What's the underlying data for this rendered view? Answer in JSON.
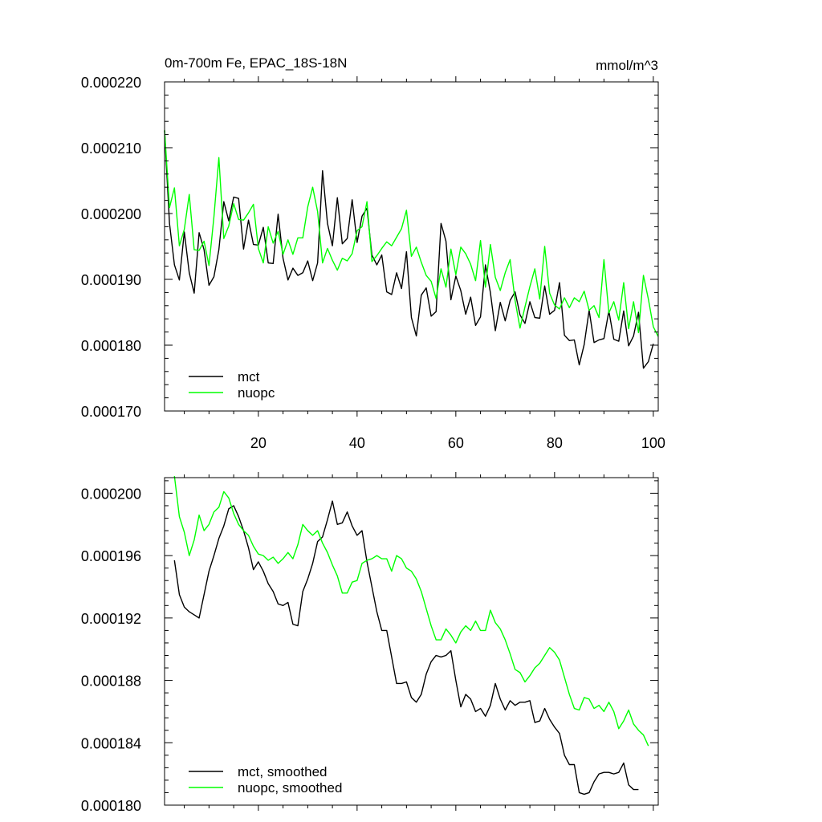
{
  "chart_data": [
    {
      "type": "line",
      "title": "0m-700m Fe, EPAC_18S-18N",
      "units": "mmol/m^3",
      "xlim": [
        1,
        101
      ],
      "ylim": [
        0.00017,
        0.00022
      ],
      "xticks": [
        20,
        40,
        60,
        80,
        100
      ],
      "yticks": [
        0.00017,
        0.00018,
        0.00019,
        0.0002,
        0.00021,
        0.00022
      ],
      "ytick_labels": [
        "0.000170",
        "0.000180",
        "0.000190",
        "0.000200",
        "0.000210",
        "0.000220"
      ],
      "legend_position": "bottom-left",
      "series": [
        {
          "name": "mct",
          "color": "#000000",
          "x_start": 1,
          "values": [
            0.0002126,
            0.0001985,
            0.0001922,
            0.0001899,
            0.0001972,
            0.000191,
            0.0001879,
            0.0001971,
            0.0001945,
            0.0001891,
            0.0001904,
            0.0001945,
            0.0002018,
            0.0001989,
            0.0002025,
            0.0002023,
            0.0001946,
            0.000199,
            0.0001953,
            0.0001952,
            0.0001979,
            0.0001925,
            0.0001924,
            0.0001999,
            0.0001932,
            0.0001899,
            0.0001917,
            0.0001906,
            0.000191,
            0.0001928,
            0.0001898,
            0.0001925,
            0.0002065,
            0.0001985,
            0.0001951,
            0.0002024,
            0.0001954,
            0.0001962,
            0.0002021,
            0.0001956,
            0.0001996,
            0.0002008,
            0.0001937,
            0.0001922,
            0.0001937,
            0.0001881,
            0.0001877,
            0.000191,
            0.0001886,
            0.0001942,
            0.0001842,
            0.0001814,
            0.0001876,
            0.0001887,
            0.0001844,
            0.0001851,
            0.0001985,
            0.0001958,
            0.0001869,
            0.0001905,
            0.0001883,
            0.0001847,
            0.0001873,
            0.000183,
            0.0001843,
            0.0001922,
            0.000188,
            0.0001822,
            0.0001865,
            0.0001837,
            0.0001868,
            0.0001881,
            0.0001846,
            0.0001833,
            0.0001866,
            0.0001842,
            0.0001841,
            0.000189,
            0.0001847,
            0.0001853,
            0.0001895,
            0.0001815,
            0.0001807,
            0.0001808,
            0.000177,
            0.0001801,
            0.0001853,
            0.0001804,
            0.0001808,
            0.000181,
            0.0001852,
            0.0001809,
            0.0001806,
            0.0001852,
            0.0001799,
            0.0001814,
            0.000185,
            0.0001765,
            0.0001775,
            0.0001802
          ]
        },
        {
          "name": "nuopc",
          "color": "#00ff00",
          "x_start": 1,
          "values": [
            0.0002127,
            0.0002009,
            0.0002039,
            0.0001951,
            0.0001976,
            0.0002029,
            0.0001945,
            0.0001944,
            0.0001958,
            0.0001921,
            0.0001995,
            0.0002085,
            0.0001962,
            0.0001981,
            0.0002015,
            0.0001991,
            0.000199,
            0.0002001,
            0.0002014,
            0.0001947,
            0.0001925,
            0.000198,
            0.0001955,
            0.0001973,
            0.0001938,
            0.000196,
            0.0001938,
            0.0001963,
            0.0001963,
            0.000201,
            0.000204,
            0.0002003,
            0.0001925,
            0.0001947,
            0.0001929,
            0.0001914,
            0.0001932,
            0.0001928,
            0.0001939,
            0.0001974,
            0.000198,
            0.0002018,
            0.0001927,
            0.0001936,
            0.0001947,
            0.0001957,
            0.0001951,
            0.0001964,
            0.0001977,
            0.0002005,
            0.0001935,
            0.0001949,
            0.0001926,
            0.0001906,
            0.0001897,
            0.0001871,
            0.0001916,
            0.0001888,
            0.0001946,
            0.0001907,
            0.0001949,
            0.0001939,
            0.0001923,
            0.0001898,
            0.0001959,
            0.0001888,
            0.0001953,
            0.0001903,
            0.0001883,
            0.000191,
            0.000193,
            0.0001868,
            0.0001826,
            0.0001858,
            0.0001889,
            0.0001916,
            0.000187,
            0.000195,
            0.0001879,
            0.0001861,
            0.0001855,
            0.0001872,
            0.0001857,
            0.0001872,
            0.0001866,
            0.0001882,
            0.0001853,
            0.000186,
            0.0001842,
            0.000193,
            0.0001849,
            0.0001866,
            0.0001838,
            0.0001895,
            0.0001825,
            0.0001866,
            0.0001819,
            0.0001906,
            0.000187,
            0.0001828,
            0.0001813
          ]
        }
      ]
    },
    {
      "type": "line",
      "xlim": [
        1,
        101
      ],
      "ylim": [
        0.00018,
        0.000201
      ],
      "xticks": [
        20,
        40,
        60,
        80,
        100
      ],
      "yticks": [
        0.00018,
        0.000184,
        0.000188,
        0.000192,
        0.000196,
        0.0002
      ],
      "ytick_labels": [
        "0.000180",
        "0.000184",
        "0.000188",
        "0.000192",
        "0.000196",
        "0.000200"
      ],
      "legend_position": "bottom-left",
      "series": [
        {
          "name": "mct, smoothed",
          "color": "#000000",
          "x_start": 3,
          "values": [
            0.0001957,
            0.0001935,
            0.0001927,
            0.0001924,
            0.0001922,
            0.000192,
            0.0001935,
            0.000195,
            0.000196,
            0.0001971,
            0.0001979,
            0.000199,
            0.0001992,
            0.0001985,
            0.0001976,
            0.0001965,
            0.0001951,
            0.0001956,
            0.000195,
            0.0001942,
            0.0001937,
            0.0001929,
            0.0001928,
            0.000193,
            0.0001916,
            0.0001915,
            0.0001937,
            0.0001945,
            0.0001955,
            0.0001969,
            0.0001972,
            0.0001983,
            0.0001995,
            0.000198,
            0.0001981,
            0.0001988,
            0.0001979,
            0.0001973,
            0.0001976,
            0.0001956,
            0.000194,
            0.0001924,
            0.0001912,
            0.0001912,
            0.0001895,
            0.0001878,
            0.0001878,
            0.0001879,
            0.0001869,
            0.0001866,
            0.0001871,
            0.0001884,
            0.0001892,
            0.0001896,
            0.0001895,
            0.0001896,
            0.0001899,
            0.000188,
            0.0001863,
            0.0001871,
            0.0001868,
            0.000186,
            0.0001862,
            0.0001857,
            0.0001864,
            0.0001878,
            0.0001868,
            0.0001861,
            0.0001867,
            0.0001864,
            0.0001866,
            0.0001866,
            0.0001867,
            0.0001853,
            0.0001854,
            0.0001862,
            0.0001855,
            0.000185,
            0.0001846,
            0.0001832,
            0.0001826,
            0.0001826,
            0.0001808,
            0.0001807,
            0.0001808,
            0.0001815,
            0.000182,
            0.0001821,
            0.0001821,
            0.000182,
            0.0001821,
            0.0001827,
            0.0001813,
            0.000181,
            0.000181
          ]
        },
        {
          "name": "nuopc, smoothed",
          "color": "#00ff00",
          "x_start": 3,
          "values": [
            0.0002011,
            0.0001985,
            0.0001975,
            0.000196,
            0.000197,
            0.0001986,
            0.0001976,
            0.000198,
            0.0001988,
            0.0001991,
            0.0002001,
            0.0001997,
            0.0001987,
            0.000198,
            0.0001976,
            0.0001973,
            0.0001966,
            0.0001961,
            0.000196,
            0.0001957,
            0.0001959,
            0.0001955,
            0.0001958,
            0.0001962,
            0.0001958,
            0.0001967,
            0.000198,
            0.0001976,
            0.0001973,
            0.0001976,
            0.0001968,
            0.0001962,
            0.0001954,
            0.0001947,
            0.0001936,
            0.0001936,
            0.0001943,
            0.0001944,
            0.0001955,
            0.0001957,
            0.0001958,
            0.000196,
            0.0001958,
            0.0001958,
            0.000195,
            0.000196,
            0.0001958,
            0.0001952,
            0.000195,
            0.0001945,
            0.0001937,
            0.0001926,
            0.0001915,
            0.0001906,
            0.0001906,
            0.0001913,
            0.0001909,
            0.0001904,
            0.0001911,
            0.0001915,
            0.0001912,
            0.0001918,
            0.0001912,
            0.0001912,
            0.0001925,
            0.0001917,
            0.0001913,
            0.0001906,
            0.0001897,
            0.0001887,
            0.0001885,
            0.0001879,
            0.0001883,
            0.0001888,
            0.0001891,
            0.0001896,
            0.0001901,
            0.0001898,
            0.0001893,
            0.0001882,
            0.0001871,
            0.0001862,
            0.0001861,
            0.0001869,
            0.0001868,
            0.0001862,
            0.0001864,
            0.000186,
            0.0001866,
            0.000186,
            0.0001849,
            0.0001854,
            0.0001861,
            0.0001852,
            0.0001848,
            0.0001845,
            0.0001838
          ]
        }
      ]
    }
  ]
}
